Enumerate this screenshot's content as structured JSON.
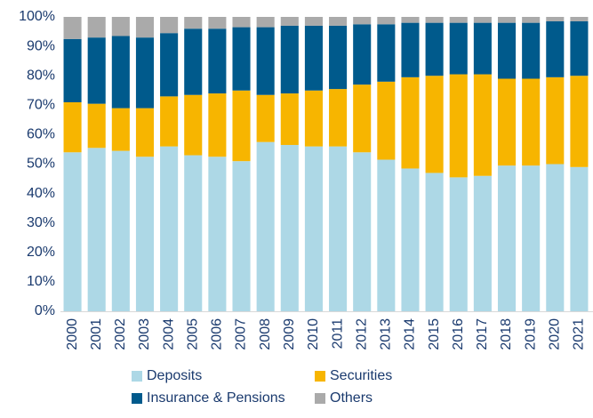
{
  "chart_data": {
    "type": "stacked_bar",
    "categories": [
      "2000",
      "2001",
      "2002",
      "2003",
      "2004",
      "2005",
      "2006",
      "2007",
      "2008",
      "2009",
      "2010",
      "2011",
      "2012",
      "2013",
      "2014",
      "2015",
      "2016",
      "2017",
      "2018",
      "2019",
      "2020",
      "2021"
    ],
    "series": [
      {
        "name": "Deposits",
        "color": "#add8e6",
        "values": [
          54,
          55.5,
          54.5,
          52.5,
          56,
          53,
          52.5,
          51,
          57.5,
          56.5,
          56,
          56,
          54,
          51.5,
          48.5,
          47,
          45.5,
          46,
          49.5,
          49.5,
          50,
          49
        ]
      },
      {
        "name": "Securities",
        "color": "#f7b500",
        "values": [
          17,
          15,
          14.5,
          16.5,
          17,
          20.5,
          21.5,
          24,
          16,
          17.5,
          19,
          19.5,
          23,
          26.5,
          31,
          33,
          35,
          34.5,
          29.5,
          29.5,
          29.5,
          31
        ]
      },
      {
        "name": "Insurance & Pensions",
        "color": "#005a8c",
        "values": [
          21.5,
          22.5,
          24.5,
          24,
          21.5,
          22.5,
          22,
          21.5,
          23,
          23,
          22,
          21.5,
          20.5,
          19.5,
          18.5,
          18,
          17.5,
          17.5,
          19,
          19,
          19,
          18.5
        ]
      },
      {
        "name": "Others",
        "color": "#aaaaaa",
        "values": [
          7.5,
          7,
          6.5,
          7,
          5.5,
          4,
          4,
          3.5,
          3.5,
          3,
          3,
          3,
          2.5,
          2.5,
          2,
          2,
          2,
          2,
          2,
          2,
          1.5,
          1.5
        ]
      }
    ],
    "ylim": [
      0,
      100
    ],
    "yticks": [
      {
        "value": 0,
        "label": "0%"
      },
      {
        "value": 10,
        "label": "10%"
      },
      {
        "value": 20,
        "label": "20%"
      },
      {
        "value": 30,
        "label": "30%"
      },
      {
        "value": 40,
        "label": "40%"
      },
      {
        "value": 50,
        "label": "50%"
      },
      {
        "value": 60,
        "label": "60%"
      },
      {
        "value": 70,
        "label": "70%"
      },
      {
        "value": 80,
        "label": "80%"
      },
      {
        "value": 90,
        "label": "90%"
      },
      {
        "value": 100,
        "label": "100%"
      }
    ],
    "legend": "bottom"
  }
}
